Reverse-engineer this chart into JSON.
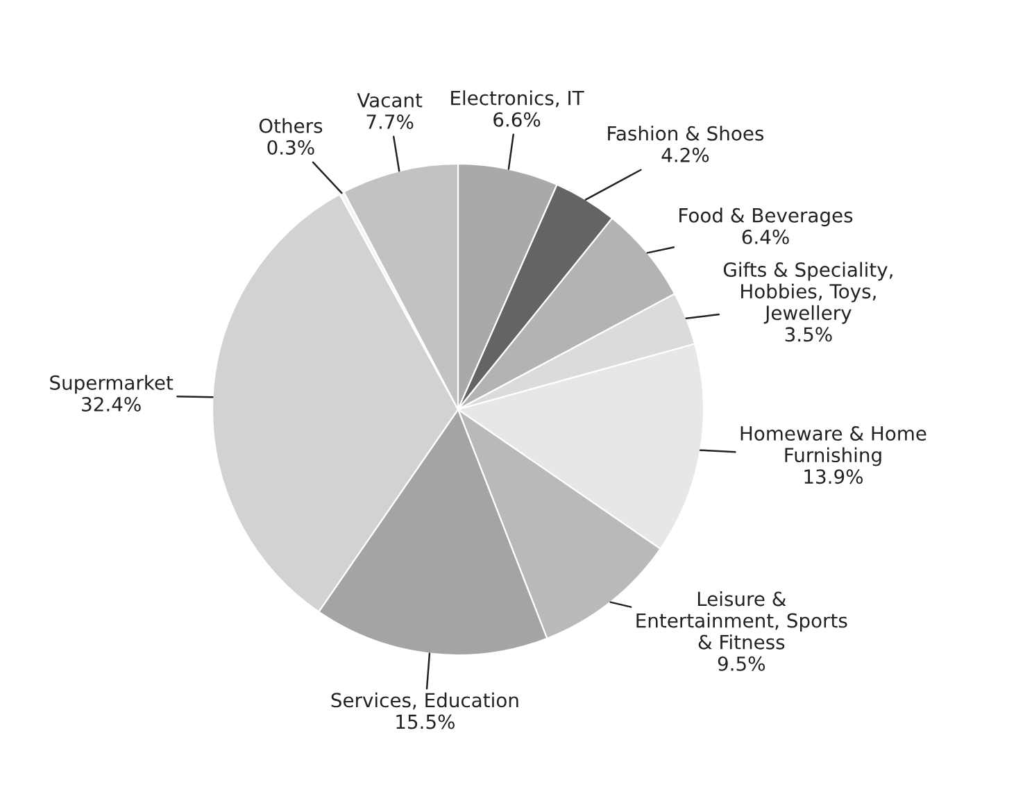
{
  "chart_data": {
    "type": "pie",
    "categories": [
      "Electronics, IT",
      "Fashion & Shoes",
      "Food & Beverages",
      "Gifts & Speciality,\nHobbies, Toys,\nJewellery",
      "Homeware & Home\nFurnishing",
      "Leisure &\nEntertainment, Sports\n& Fitness",
      "Services, Education",
      "Supermarket",
      "Others",
      "Vacant"
    ],
    "values": [
      6.6,
      4.2,
      6.4,
      3.5,
      13.9,
      9.5,
      15.5,
      32.4,
      0.3,
      7.7
    ],
    "value_labels": [
      "6.6%",
      "4.2%",
      "6.4%",
      "3.5%",
      "13.9%",
      "9.5%",
      "15.5%",
      "32.4%",
      "0.3%",
      "7.7%"
    ],
    "colors": [
      "#a8a9ab",
      "#636466",
      "#b2b3b5",
      "#dadbdc",
      "#e7e7e7",
      "#b8b9bb",
      "#a3a4a6",
      "#d1d2d3",
      "#f4f4f4",
      "#c1c2c3"
    ]
  }
}
